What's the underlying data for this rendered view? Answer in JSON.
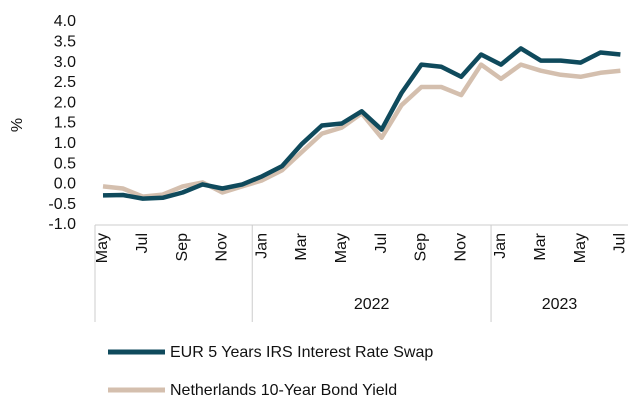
{
  "chart_data": {
    "type": "line",
    "y_label": "%",
    "categories": [
      "May",
      null,
      "Jul",
      null,
      "Sep",
      null,
      "Nov",
      null,
      "Jan",
      null,
      "Mar",
      null,
      "May",
      null,
      "Jul",
      null,
      "Sep",
      null,
      "Nov",
      null,
      "Jan",
      null,
      "Mar",
      null,
      "May",
      null,
      "Jul"
    ],
    "year_groups": [
      {
        "label": null,
        "count": 8
      },
      {
        "label": "2022",
        "count": 12
      },
      {
        "label": "2023",
        "count": 7
      }
    ],
    "series": [
      {
        "name": "EUR 5 Years IRS Interest Rate Swap",
        "color": "#0f4a5c",
        "values": [
          -0.27,
          -0.26,
          -0.35,
          -0.33,
          -0.2,
          0.0,
          -0.1,
          0.0,
          0.2,
          0.45,
          1.0,
          1.45,
          1.5,
          1.8,
          1.35,
          2.25,
          2.95,
          2.9,
          2.65,
          3.2,
          2.95,
          3.35,
          3.05,
          3.05,
          3.0,
          3.25,
          3.2
        ]
      },
      {
        "name": "Netherlands 10-Year Bond Yield",
        "color": "#d4bfae",
        "values": [
          -0.05,
          -0.1,
          -0.3,
          -0.25,
          -0.05,
          0.05,
          -0.2,
          -0.05,
          0.1,
          0.35,
          0.8,
          1.25,
          1.4,
          1.75,
          1.15,
          1.95,
          2.4,
          2.4,
          2.2,
          2.95,
          2.6,
          2.95,
          2.8,
          2.7,
          2.65,
          2.75,
          2.8
        ]
      }
    ],
    "ylim": [
      -1.0,
      4.0
    ],
    "yticks": [
      {
        "value": 4.0,
        "label": "4.0"
      },
      3.5,
      {
        "value": 3.0,
        "label": "3.0"
      },
      2.5,
      {
        "value": 2.0,
        "label": "2.0"
      },
      1.5,
      {
        "value": 1.0,
        "label": "1.0"
      },
      0.5,
      {
        "value": 0.0,
        "label": "0.0"
      },
      -0.5,
      {
        "value": -1.0,
        "label": "-1.0"
      }
    ],
    "grid": false,
    "legend": "bottom"
  }
}
